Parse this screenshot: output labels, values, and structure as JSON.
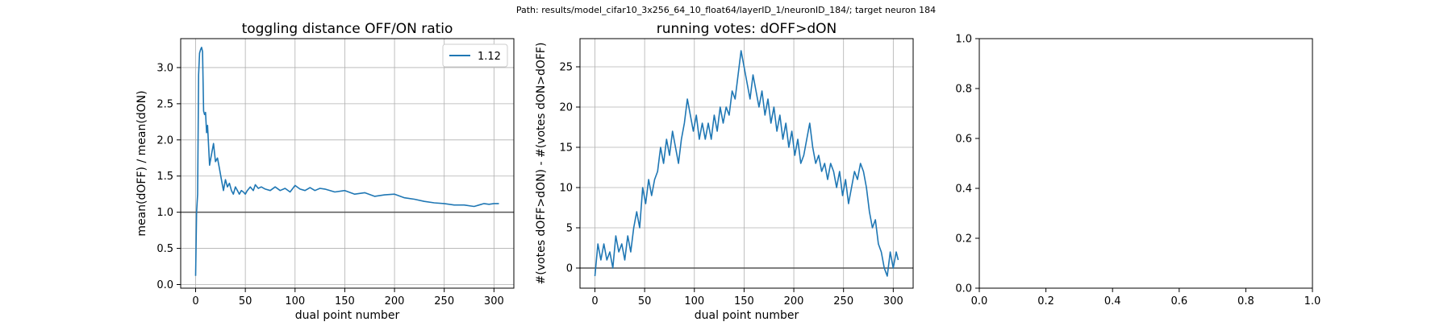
{
  "suptitle": "Path: results/model_cifar10_3x256_64_10_float64/layerID_1/neuronID_184/; target neuron 184",
  "chart_data": [
    {
      "type": "line",
      "title": "toggling distance OFF/ON ratio",
      "xlabel": "dual point number",
      "ylabel": "mean(dOFF) / mean(dON)",
      "xlim": [
        -15,
        320
      ],
      "ylim": [
        -0.05,
        3.4
      ],
      "xticks": [
        0,
        50,
        100,
        150,
        200,
        250,
        300
      ],
      "yticks": [
        0.0,
        0.5,
        1.0,
        1.5,
        2.0,
        2.5,
        3.0
      ],
      "xtick_labels": [
        "0",
        "50",
        "100",
        "150",
        "200",
        "250",
        "300"
      ],
      "ytick_labels": [
        "0.0",
        "0.5",
        "1.0",
        "1.5",
        "2.0",
        "2.5",
        "3.0"
      ],
      "grid": true,
      "hline": 1.0,
      "legend": {
        "placement": "top-right",
        "entries": [
          "1.12"
        ]
      },
      "series": [
        {
          "name": "1.12",
          "color": "#1f77b4",
          "x": [
            0,
            1,
            2,
            3,
            4,
            5,
            6,
            7,
            8,
            9,
            10,
            11,
            12,
            14,
            16,
            18,
            20,
            22,
            24,
            26,
            28,
            30,
            32,
            34,
            36,
            38,
            40,
            42,
            44,
            46,
            48,
            50,
            52,
            55,
            58,
            60,
            63,
            66,
            70,
            75,
            80,
            85,
            90,
            95,
            100,
            105,
            110,
            115,
            120,
            125,
            130,
            140,
            150,
            160,
            170,
            180,
            190,
            200,
            210,
            220,
            230,
            240,
            250,
            260,
            270,
            280,
            285,
            290,
            295,
            300,
            305
          ],
          "y": [
            0.12,
            1.0,
            1.25,
            2.9,
            3.2,
            3.25,
            3.28,
            3.22,
            2.4,
            2.35,
            2.38,
            2.1,
            2.2,
            1.65,
            1.8,
            1.95,
            1.7,
            1.75,
            1.6,
            1.45,
            1.3,
            1.45,
            1.35,
            1.4,
            1.3,
            1.25,
            1.35,
            1.3,
            1.25,
            1.3,
            1.28,
            1.25,
            1.3,
            1.35,
            1.3,
            1.38,
            1.33,
            1.35,
            1.32,
            1.3,
            1.35,
            1.3,
            1.33,
            1.28,
            1.37,
            1.32,
            1.3,
            1.34,
            1.3,
            1.33,
            1.32,
            1.28,
            1.3,
            1.25,
            1.27,
            1.22,
            1.24,
            1.25,
            1.2,
            1.18,
            1.15,
            1.13,
            1.12,
            1.1,
            1.1,
            1.08,
            1.1,
            1.12,
            1.11,
            1.12,
            1.12
          ]
        }
      ]
    },
    {
      "type": "line",
      "title": "running votes: dOFF>dON",
      "xlabel": "dual point number",
      "ylabel": "#(votes dOFF>dON) - #(votes dON>dOFF)",
      "xlim": [
        -15,
        320
      ],
      "ylim": [
        -2.5,
        28.5
      ],
      "xticks": [
        0,
        50,
        100,
        150,
        200,
        250,
        300
      ],
      "yticks": [
        0,
        5,
        10,
        15,
        20,
        25
      ],
      "xtick_labels": [
        "0",
        "50",
        "100",
        "150",
        "200",
        "250",
        "300"
      ],
      "ytick_labels": [
        "0",
        "5",
        "10",
        "15",
        "20",
        "25"
      ],
      "grid": true,
      "hline": 0,
      "series": [
        {
          "color": "#1f77b4",
          "x": [
            0,
            3,
            6,
            9,
            12,
            15,
            18,
            21,
            24,
            27,
            30,
            33,
            36,
            39,
            42,
            45,
            48,
            51,
            54,
            57,
            60,
            63,
            66,
            69,
            72,
            75,
            78,
            81,
            84,
            87,
            90,
            93,
            96,
            99,
            102,
            105,
            108,
            111,
            114,
            117,
            120,
            123,
            126,
            129,
            132,
            135,
            138,
            141,
            144,
            147,
            150,
            153,
            156,
            159,
            162,
            165,
            168,
            171,
            174,
            177,
            180,
            183,
            186,
            189,
            192,
            195,
            198,
            201,
            204,
            207,
            210,
            213,
            216,
            219,
            222,
            225,
            228,
            231,
            234,
            237,
            240,
            243,
            246,
            249,
            252,
            255,
            258,
            261,
            264,
            267,
            270,
            273,
            276,
            279,
            282,
            285,
            288,
            291,
            294,
            297,
            300,
            303,
            305
          ],
          "y": [
            -1,
            3,
            1,
            3,
            1,
            2,
            0,
            4,
            2,
            3,
            1,
            4,
            2,
            5,
            7,
            5,
            10,
            8,
            11,
            9,
            11,
            12,
            15,
            13,
            16,
            14,
            17,
            15,
            13,
            16,
            18,
            21,
            19,
            17,
            19,
            16,
            18,
            16,
            18,
            16,
            19,
            17,
            20,
            18,
            20,
            19,
            22,
            21,
            24,
            27,
            25,
            23,
            21,
            24,
            22,
            20,
            22,
            19,
            21,
            18,
            20,
            17,
            19,
            16,
            18,
            15,
            17,
            14,
            16,
            13,
            14,
            16,
            18,
            15,
            13,
            14,
            12,
            13,
            11,
            13,
            12,
            10,
            12,
            9,
            11,
            8,
            10,
            12,
            11,
            13,
            12,
            10,
            7,
            5,
            6,
            3,
            2,
            0,
            -1,
            2,
            0,
            2,
            1
          ]
        }
      ]
    },
    {
      "type": "line",
      "title": "",
      "xlabel": "",
      "ylabel": "",
      "xlim": [
        0,
        1
      ],
      "ylim": [
        0,
        1
      ],
      "xticks": [
        0.0,
        0.2,
        0.4,
        0.6,
        0.8,
        1.0
      ],
      "yticks": [
        0.0,
        0.2,
        0.4,
        0.6,
        0.8,
        1.0
      ],
      "xtick_labels": [
        "0.0",
        "0.2",
        "0.4",
        "0.6",
        "0.8",
        "1.0"
      ],
      "ytick_labels": [
        "0.0",
        "0.2",
        "0.4",
        "0.6",
        "0.8",
        "1.0"
      ],
      "grid": false,
      "series": []
    }
  ]
}
